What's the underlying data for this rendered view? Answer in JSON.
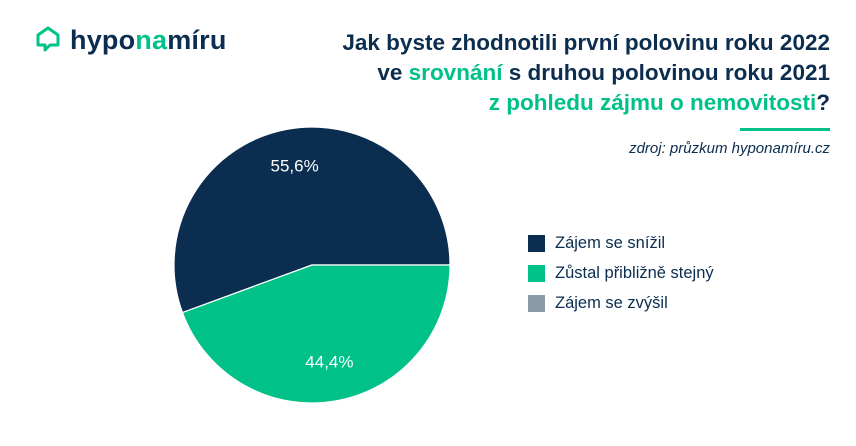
{
  "logo": {
    "part1": "hypo",
    "part2": "na",
    "part3": "míru"
  },
  "title": {
    "line1": "Jak byste zhodnotili první polovinu roku 2022",
    "line2_pre": "ve ",
    "line2_accent": "srovnání",
    "line2_post": " s druhou polovinou roku 2021",
    "line3_accent": "z pohledu zájmu o nemovitosti",
    "line3_post": "?"
  },
  "source": "zdroj: průzkum hyponamíru.cz",
  "colors": {
    "navy": "#0b2d4f",
    "green": "#00c187",
    "gray": "#8a9aa6"
  },
  "chart_data": {
    "type": "pie",
    "slices": [
      {
        "label": "Zájem se snížil",
        "value": 55.6,
        "display": "55,6%",
        "color": "#0b2d4f"
      },
      {
        "label": "Zůstal přibližně stejný",
        "value": 44.4,
        "display": "44,4%",
        "color": "#00c187"
      },
      {
        "label": "Zájem se zvýšil",
        "value": 0,
        "display": "",
        "color": "#8a9aa6"
      }
    ],
    "legend": [
      "Zájem se snížil",
      "Zůstal přibližně stejný",
      "Zájem se zvýšil"
    ],
    "legend_position": "right"
  }
}
